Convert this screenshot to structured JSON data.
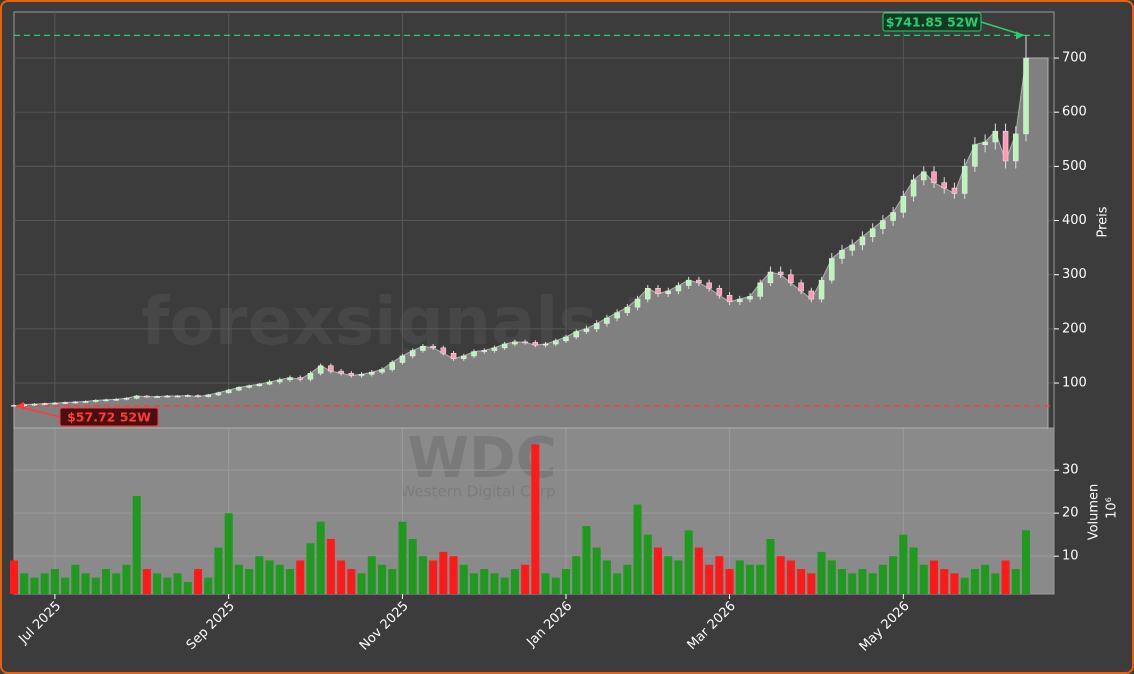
{
  "chart_data": {
    "type": "candlestick",
    "watermark": "forexsignals.trade",
    "ticker": "WDC",
    "company": "Western Digital Corp",
    "categories": [
      null,
      null,
      null,
      null,
      "Jul 2025",
      null,
      null,
      null,
      null,
      null,
      null,
      null,
      null,
      null,
      null,
      null,
      null,
      null,
      null,
      null,
      null,
      "Sep 2025",
      null,
      null,
      null,
      null,
      null,
      null,
      null,
      null,
      null,
      null,
      null,
      null,
      null,
      null,
      null,
      null,
      "Nov 2025",
      null,
      null,
      null,
      null,
      null,
      null,
      null,
      null,
      null,
      null,
      null,
      null,
      null,
      null,
      null,
      "Jan 2026",
      null,
      null,
      null,
      null,
      null,
      null,
      null,
      null,
      null,
      null,
      null,
      null,
      null,
      null,
      null,
      "Mar 2026",
      null,
      null,
      null,
      null,
      null,
      null,
      null,
      null,
      null,
      null,
      null,
      null,
      null,
      null,
      null,
      null,
      "May 2026",
      null,
      null,
      null,
      null,
      null,
      null,
      null,
      null,
      null,
      null,
      null,
      null
    ],
    "open": [
      59,
      58,
      60,
      61,
      62,
      63,
      64,
      65,
      66,
      68,
      69,
      70,
      72,
      76,
      75,
      75,
      76,
      76,
      77,
      75,
      78,
      82,
      87,
      92,
      95,
      98,
      102,
      106,
      110,
      107,
      118,
      132,
      122,
      118,
      114,
      116,
      120,
      125,
      138,
      150,
      160,
      168,
      165,
      155,
      145,
      150,
      158,
      160,
      165,
      172,
      176,
      175,
      170,
      172,
      178,
      185,
      195,
      200,
      210,
      220,
      230,
      240,
      255,
      275,
      265,
      270,
      280,
      290,
      285,
      275,
      262,
      250,
      255,
      260,
      285,
      305,
      300,
      285,
      270,
      255,
      290,
      330,
      345,
      355,
      370,
      385,
      400,
      415,
      445,
      475,
      490,
      470,
      460,
      450,
      500,
      540,
      545,
      565,
      510,
      560
    ],
    "high": [
      61,
      62,
      63,
      64,
      65,
      66,
      67,
      68,
      70,
      71,
      72,
      74,
      78,
      78,
      77,
      78,
      78,
      79,
      79,
      80,
      84,
      89,
      94,
      97,
      100,
      106,
      110,
      114,
      114,
      122,
      136,
      136,
      126,
      122,
      120,
      124,
      129,
      142,
      154,
      164,
      172,
      172,
      169,
      159,
      154,
      162,
      164,
      169,
      176,
      180,
      180,
      179,
      176,
      182,
      189,
      199,
      206,
      216,
      226,
      236,
      246,
      261,
      281,
      281,
      276,
      286,
      296,
      296,
      291,
      281,
      268,
      261,
      266,
      291,
      315,
      315,
      310,
      291,
      276,
      296,
      340,
      355,
      365,
      380,
      395,
      410,
      425,
      455,
      485,
      500,
      500,
      480,
      470,
      514,
      554,
      559,
      579,
      579,
      574,
      741.85
    ],
    "low": [
      57.72,
      56,
      58,
      59,
      60,
      61,
      62,
      63,
      64,
      66,
      67,
      68,
      70,
      73,
      73,
      73,
      74,
      74,
      73,
      73,
      76,
      80,
      85,
      90,
      93,
      96,
      98,
      102,
      103,
      103,
      114,
      118,
      114,
      110,
      110,
      112,
      116,
      121,
      134,
      146,
      156,
      161,
      151,
      141,
      141,
      146,
      154,
      156,
      161,
      168,
      171,
      166,
      166,
      168,
      174,
      181,
      191,
      194,
      204,
      214,
      224,
      234,
      249,
      259,
      259,
      264,
      274,
      279,
      269,
      256,
      244,
      244,
      249,
      254,
      279,
      294,
      279,
      264,
      249,
      249,
      284,
      320,
      335,
      345,
      360,
      375,
      390,
      405,
      435,
      465,
      460,
      450,
      440,
      440,
      490,
      526,
      531,
      496,
      496,
      546
    ],
    "close": [
      58,
      60,
      61,
      62,
      63,
      64,
      65,
      66,
      68,
      69,
      70,
      72,
      76,
      75,
      75,
      76,
      76,
      77,
      75,
      78,
      82,
      87,
      92,
      95,
      98,
      102,
      106,
      110,
      107,
      118,
      132,
      122,
      118,
      114,
      116,
      120,
      125,
      138,
      150,
      160,
      168,
      165,
      155,
      145,
      150,
      158,
      160,
      165,
      172,
      176,
      175,
      170,
      172,
      178,
      185,
      195,
      200,
      210,
      220,
      230,
      240,
      255,
      275,
      265,
      270,
      280,
      290,
      285,
      275,
      262,
      250,
      255,
      260,
      285,
      305,
      300,
      285,
      270,
      255,
      290,
      330,
      345,
      355,
      370,
      385,
      400,
      415,
      445,
      475,
      490,
      470,
      460,
      450,
      500,
      540,
      545,
      565,
      510,
      560,
      700
    ],
    "volume": [
      9,
      6,
      5,
      6,
      7,
      5,
      8,
      6,
      5,
      7,
      6,
      8,
      24,
      7,
      6,
      5,
      6,
      4,
      7,
      5,
      12,
      20,
      8,
      7,
      10,
      9,
      8,
      7,
      9,
      13,
      18,
      14,
      9,
      7,
      6,
      10,
      8,
      7,
      18,
      14,
      10,
      9,
      11,
      10,
      8,
      6,
      7,
      6,
      5,
      7,
      8,
      36,
      6,
      5,
      7,
      10,
      17,
      12,
      9,
      6,
      8,
      22,
      15,
      12,
      10,
      9,
      16,
      12,
      8,
      10,
      7,
      9,
      8,
      8,
      14,
      10,
      9,
      7,
      6,
      11,
      9,
      7,
      6,
      7,
      6,
      8,
      10,
      15,
      12,
      8,
      9,
      7,
      6,
      5,
      7,
      8,
      6,
      9,
      7,
      16
    ],
    "ylim": [
      17,
      785
    ],
    "yticks": [
      100,
      200,
      300,
      400,
      500,
      600,
      700
    ],
    "ylabel": "Preis",
    "volume_ylim": [
      1.2,
      39.8
    ],
    "volume_yticks": [
      10,
      20,
      30
    ],
    "volume_label": "Volumen",
    "volume_unit": "10⁶",
    "up_color": "#1f9a1f",
    "down_color": "#ff1a1a",
    "candle_up_color": "#b8f5b8",
    "candle_down_color": "#ff9ab2",
    "area_color": "#808080",
    "grid": true,
    "annotations": [
      {
        "value": 57.72,
        "label": "$57.72 52W",
        "color": "#ff3b3b"
      },
      {
        "value": 741.85,
        "label": "$741.85 52W",
        "color": "#2ecc71"
      }
    ]
  }
}
